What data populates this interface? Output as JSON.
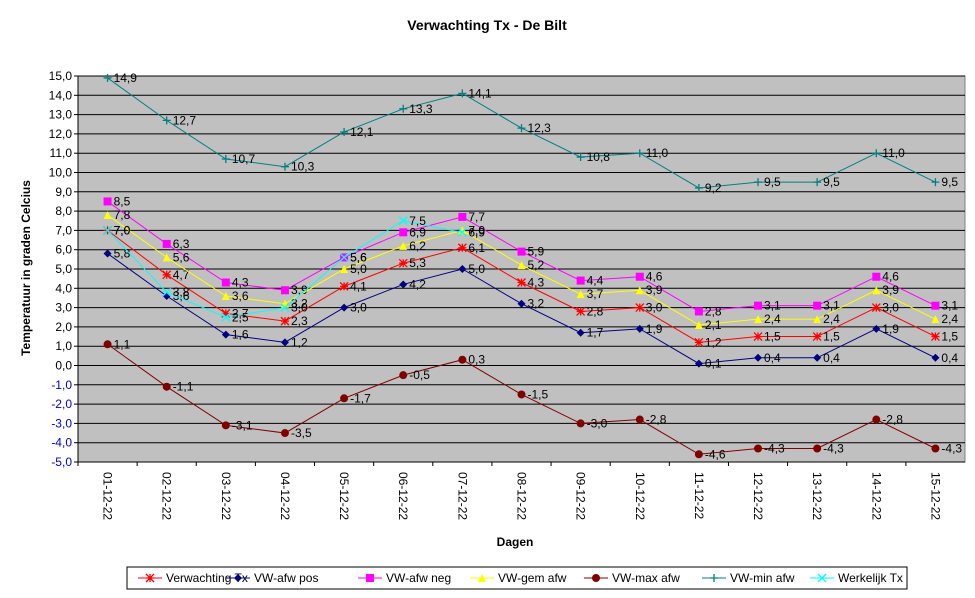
{
  "chart_data": {
    "type": "line",
    "title": "Verwachting Tx - De Bilt",
    "x_label": "Dagen",
    "y_label": "Temperatuur in graden Celcius",
    "categories": [
      "01-12-22",
      "02-12-22",
      "03-12-22",
      "04-12-22",
      "05-12-22",
      "06-12-22",
      "07-12-22",
      "08-12-22",
      "09-12-22",
      "10-12-22",
      "11-12-22",
      "12-12-22",
      "13-12-22",
      "14-12-22",
      "15-12-22"
    ],
    "ylim": [
      -5,
      15
    ],
    "yticks": [
      {
        "value": -5,
        "label": "-5,0"
      },
      {
        "value": -4,
        "label": "-4,0"
      },
      {
        "value": -3,
        "label": "-3,0"
      },
      {
        "value": -2,
        "label": "-2,0"
      },
      {
        "value": -1,
        "label": "-1,0"
      },
      {
        "value": 0,
        "label": "0,0"
      },
      {
        "value": 1,
        "label": "1,0"
      },
      {
        "value": 2,
        "label": "2,0"
      },
      {
        "value": 3,
        "label": "3,0"
      },
      {
        "value": 4,
        "label": "4,0"
      },
      {
        "value": 5,
        "label": "5,0"
      },
      {
        "value": 6,
        "label": "6,0"
      },
      {
        "value": 7,
        "label": "7,0"
      },
      {
        "value": 8,
        "label": "8,0"
      },
      {
        "value": 9,
        "label": "9,0"
      },
      {
        "value": 10,
        "label": "10,0"
      },
      {
        "value": 11,
        "label": "11,0"
      },
      {
        "value": 12,
        "label": "12,0"
      },
      {
        "value": 13,
        "label": "13,0"
      },
      {
        "value": 14,
        "label": "14,0"
      },
      {
        "value": 15,
        "label": "15,0"
      }
    ],
    "grid": true,
    "legend": "bottom",
    "series": [
      {
        "name": "Verwachting Tx",
        "color": "#ff0000",
        "marker": "asterisk",
        "values": [
          7.0,
          4.7,
          2.7,
          2.3,
          4.1,
          5.3,
          6.1,
          4.3,
          2.8,
          3.0,
          1.2,
          1.5,
          1.5,
          3.0,
          1.5
        ],
        "value_labels": [
          "7,0",
          "4,7",
          "2,7",
          "2,3",
          "4,1",
          "5,3",
          "6,1",
          "4,3",
          "2,8",
          "3,0",
          "1,2",
          "1,5",
          "1,5",
          "3,0",
          "1,5"
        ]
      },
      {
        "name": "VW-afw pos",
        "color": "#000080",
        "marker": "diamond",
        "values": [
          5.8,
          3.6,
          1.6,
          1.2,
          3.0,
          4.2,
          5.0,
          3.2,
          1.7,
          1.9,
          0.1,
          0.4,
          0.4,
          1.9,
          0.4
        ],
        "value_labels": [
          "5,8",
          "3,6",
          "1,6",
          "1,2",
          "3,0",
          "4,2",
          "5,0",
          "3,2",
          "1,7",
          "1,9",
          "0,1",
          "0,4",
          "0,4",
          "1,9",
          "0,4"
        ]
      },
      {
        "name": "VW-afw neg",
        "color": "#ff00ff",
        "marker": "square",
        "values": [
          8.5,
          6.3,
          4.3,
          3.9,
          5.6,
          6.9,
          7.7,
          5.9,
          4.4,
          4.6,
          2.8,
          3.1,
          3.1,
          4.6,
          3.1
        ],
        "value_labels": [
          "8,5",
          "6,3",
          "4,3",
          "3,9",
          "5,6",
          "6,9",
          "7,7",
          "5,9",
          "4,4",
          "4,6",
          "2,8",
          "3,1",
          "3,1",
          "4,6",
          "3,1"
        ]
      },
      {
        "name": "VW-gem afw",
        "color": "#ffff00",
        "marker": "triangle",
        "values": [
          7.8,
          5.6,
          3.6,
          3.2,
          5.0,
          6.2,
          7.0,
          5.2,
          3.7,
          3.9,
          2.1,
          2.4,
          2.4,
          3.9,
          2.4
        ],
        "value_labels": [
          "7,8",
          "5,6",
          "3,6",
          "3,2",
          "5,0",
          "6,2",
          "7,0",
          "5,2",
          "3,7",
          "3,9",
          "2,1",
          "2,4",
          "2,4",
          "3,9",
          "2,4"
        ]
      },
      {
        "name": "VW-max afw",
        "color": "#800000",
        "marker": "circle",
        "values": [
          1.1,
          -1.1,
          -3.1,
          -3.5,
          -1.7,
          -0.5,
          0.3,
          -1.5,
          -3.0,
          -2.8,
          -4.6,
          -4.3,
          -4.3,
          -2.8,
          -4.3
        ],
        "value_labels": [
          "1,1",
          "-1,1",
          "-3,1",
          "-3,5",
          "-1,7",
          "-0,5",
          "0,3",
          "-1,5",
          "-3,0",
          "-2,8",
          "-4,6",
          "-4,3",
          "-4,3",
          "-2,8",
          "-4,3"
        ]
      },
      {
        "name": "VW-min afw",
        "color": "#008080",
        "marker": "plus",
        "values": [
          14.9,
          12.7,
          10.7,
          10.3,
          12.1,
          13.3,
          14.1,
          12.3,
          10.8,
          11.0,
          9.2,
          9.5,
          9.5,
          11.0,
          9.5
        ],
        "value_labels": [
          "14,9",
          "12,7",
          "10,7",
          "10,3",
          "12,1",
          "13,3",
          "14,1",
          "12,3",
          "10,8",
          "11,0",
          "9,2",
          "9,5",
          "9,5",
          "11,0",
          "9,5"
        ]
      },
      {
        "name": "Werkelijk Tx",
        "color": "#00ffff",
        "marker": "x",
        "values": [
          7.0,
          3.8,
          2.5,
          3.0,
          5.6,
          7.5,
          6.9,
          null,
          null,
          null,
          null,
          null,
          null,
          null,
          null
        ],
        "value_labels": [
          "7,0",
          "3,8",
          "2,5",
          "3,0",
          "5,6",
          "7,5",
          "6,9",
          null,
          null,
          null,
          null,
          null,
          null,
          null,
          null
        ]
      }
    ]
  }
}
